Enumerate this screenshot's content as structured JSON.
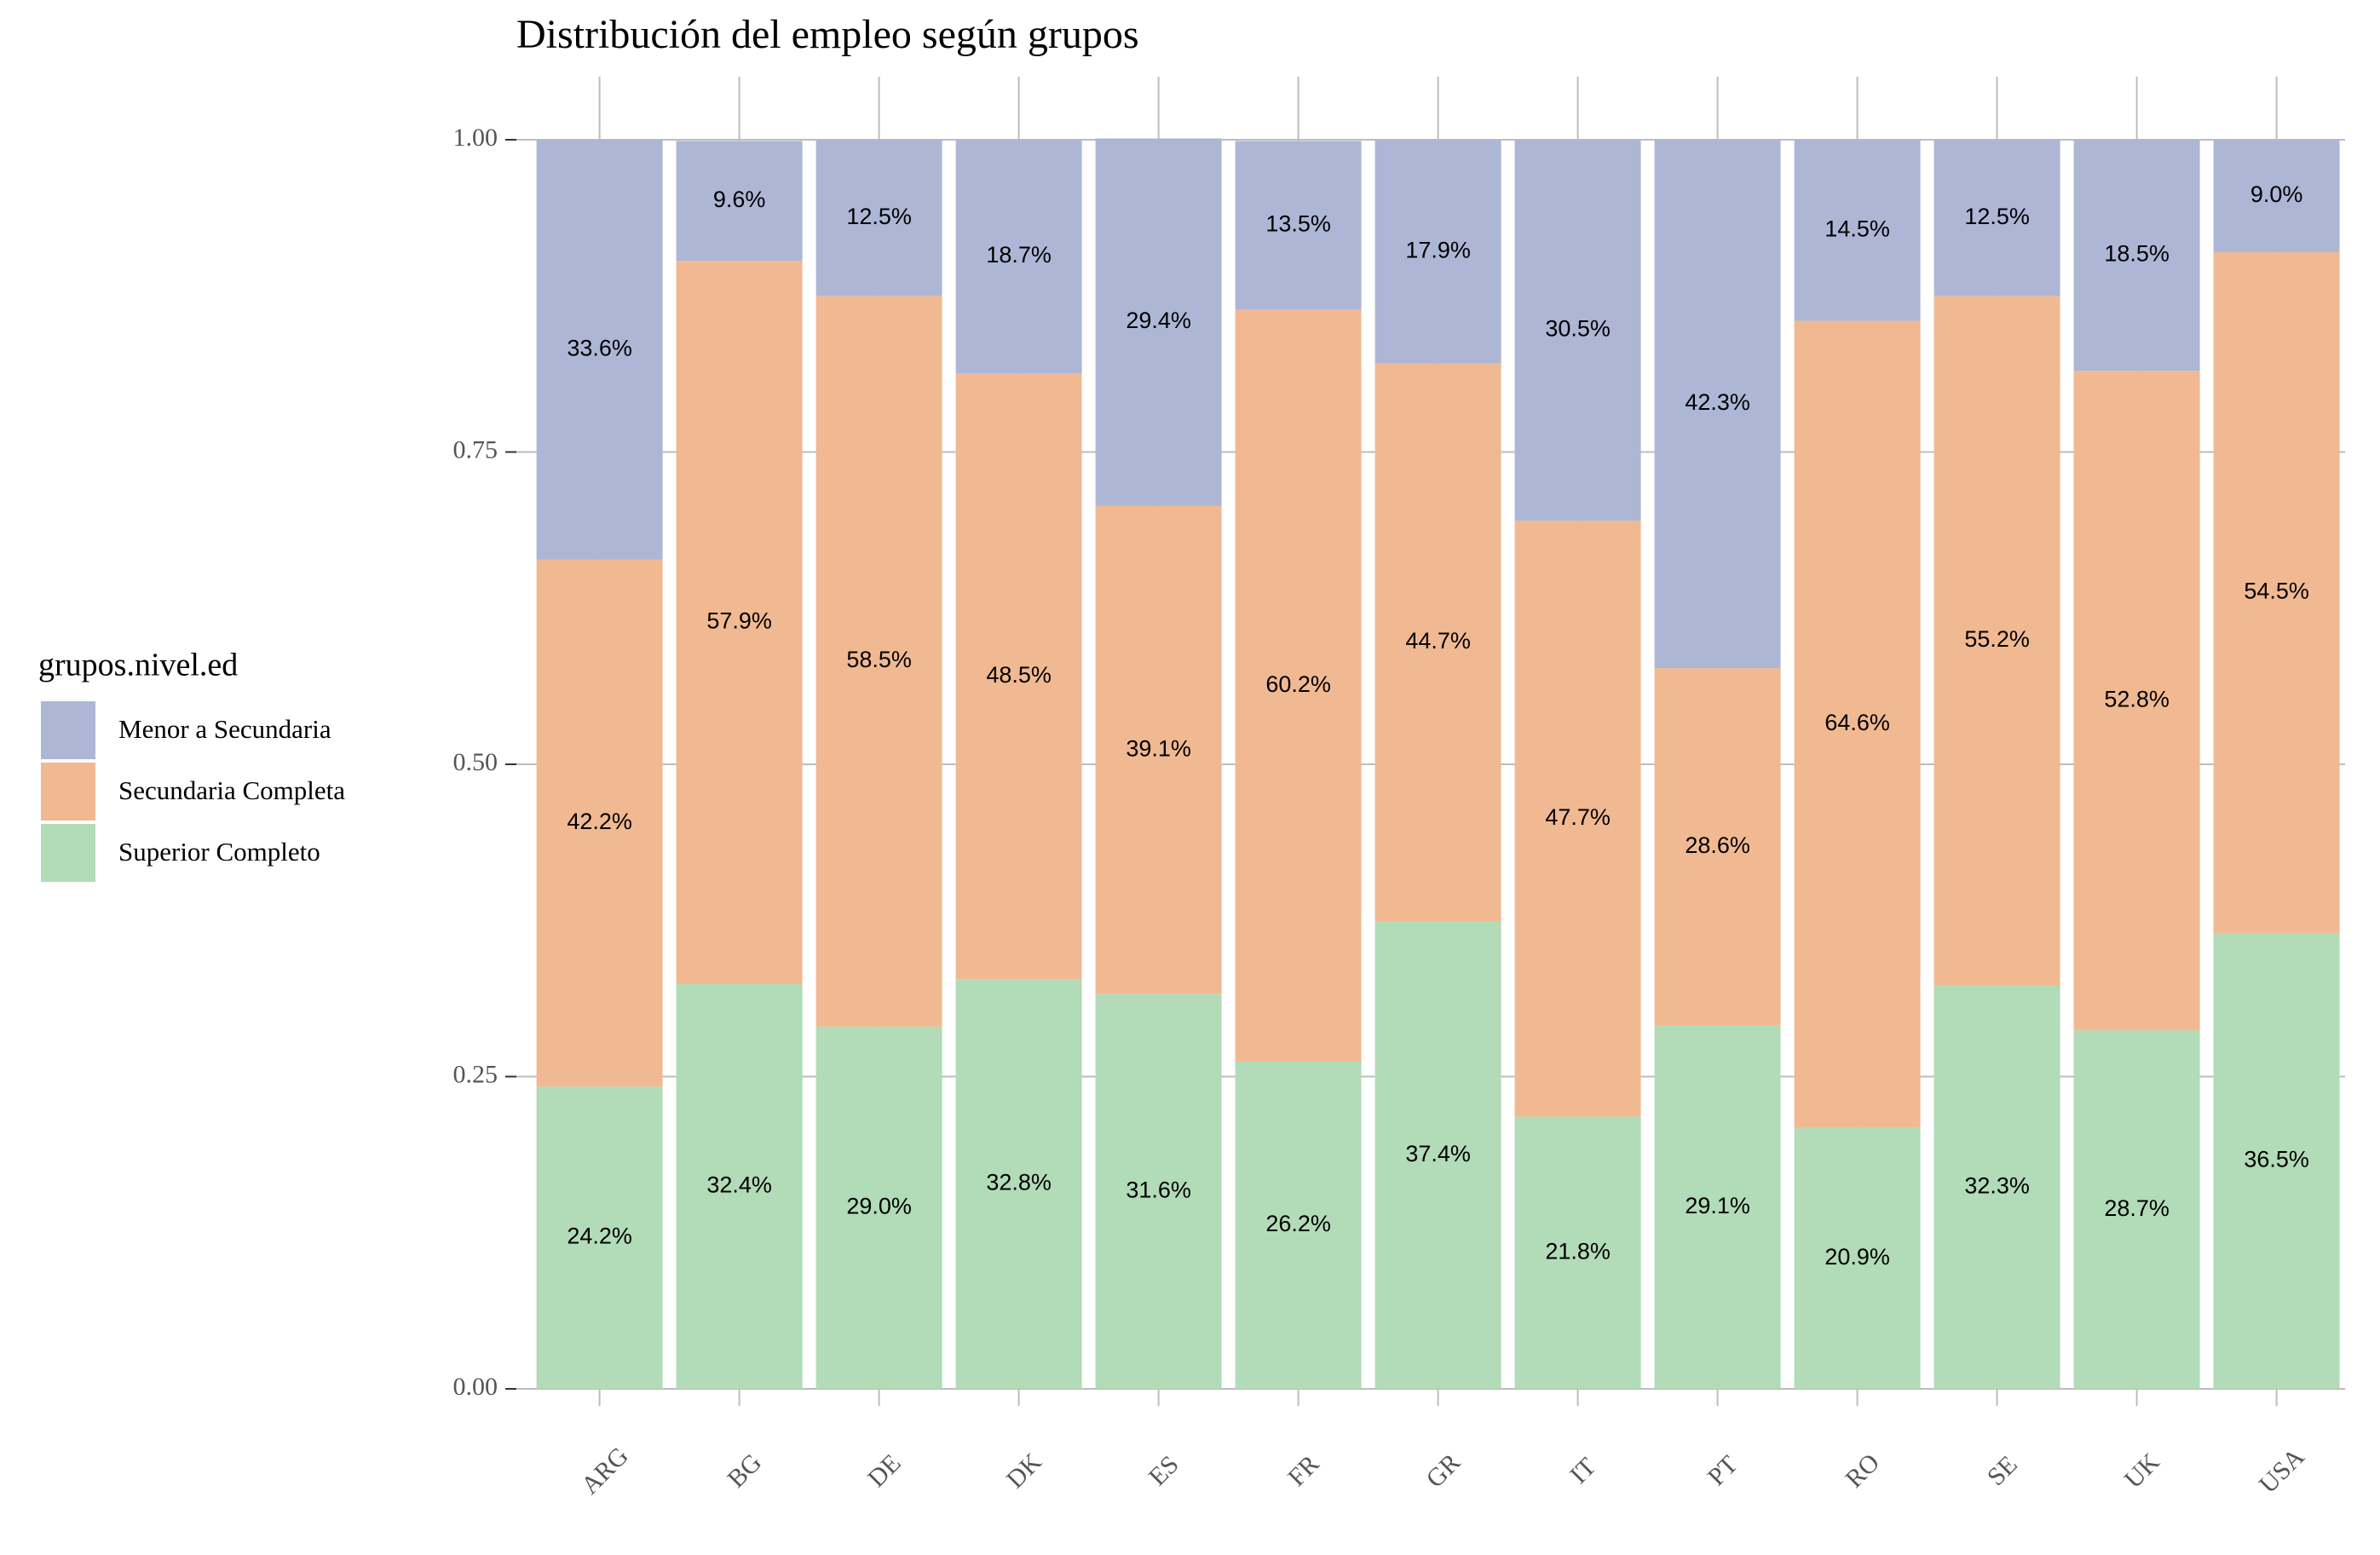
{
  "chart_data": {
    "type": "stacked_bar",
    "title": "Distribución del empleo según grupos",
    "legend_title": "grupos.nivel.ed",
    "legend_position": "left",
    "categories": [
      "ARG",
      "BG",
      "DE",
      "DK",
      "ES",
      "FR",
      "GR",
      "IT",
      "PT",
      "RO",
      "SE",
      "UK",
      "USA"
    ],
    "series": [
      {
        "name": "Menor a Secundaria",
        "color": "#adb6d5",
        "values": [
          0.336,
          0.096,
          0.125,
          0.187,
          0.294,
          0.135,
          0.179,
          0.305,
          0.423,
          0.145,
          0.125,
          0.185,
          0.09
        ],
        "value_labels": [
          "33.6%",
          "9.6%",
          "12.5%",
          "18.7%",
          "29.4%",
          "13.5%",
          "17.9%",
          "30.5%",
          "42.3%",
          "14.5%",
          "12.5%",
          "18.5%",
          "9.0%"
        ]
      },
      {
        "name": "Secundaria Completa",
        "color": "#f0b992",
        "values": [
          0.422,
          0.579,
          0.585,
          0.485,
          0.391,
          0.602,
          0.447,
          0.477,
          0.286,
          0.646,
          0.552,
          0.528,
          0.545
        ],
        "value_labels": [
          "42.2%",
          "57.9%",
          "58.5%",
          "48.5%",
          "39.1%",
          "60.2%",
          "44.7%",
          "47.7%",
          "28.6%",
          "64.6%",
          "55.2%",
          "52.8%",
          "54.5%"
        ]
      },
      {
        "name": "Superior Completo",
        "color": "#b2dbb8",
        "values": [
          0.242,
          0.324,
          0.29,
          0.328,
          0.316,
          0.262,
          0.374,
          0.218,
          0.291,
          0.209,
          0.323,
          0.287,
          0.365
        ],
        "value_labels": [
          "24.2%",
          "32.4%",
          "29.0%",
          "32.8%",
          "31.6%",
          "26.2%",
          "37.4%",
          "21.8%",
          "29.1%",
          "20.9%",
          "32.3%",
          "28.7%",
          "36.5%"
        ]
      }
    ],
    "ylim": [
      0,
      1
    ],
    "yticks": [
      {
        "value": 0,
        "label": "0.00"
      },
      {
        "value": 0.25,
        "label": "0.25"
      },
      {
        "value": 0.5,
        "label": "0.50"
      },
      {
        "value": 0.75,
        "label": "0.75"
      },
      {
        "value": 1,
        "label": "1.00"
      }
    ],
    "grid": true
  }
}
